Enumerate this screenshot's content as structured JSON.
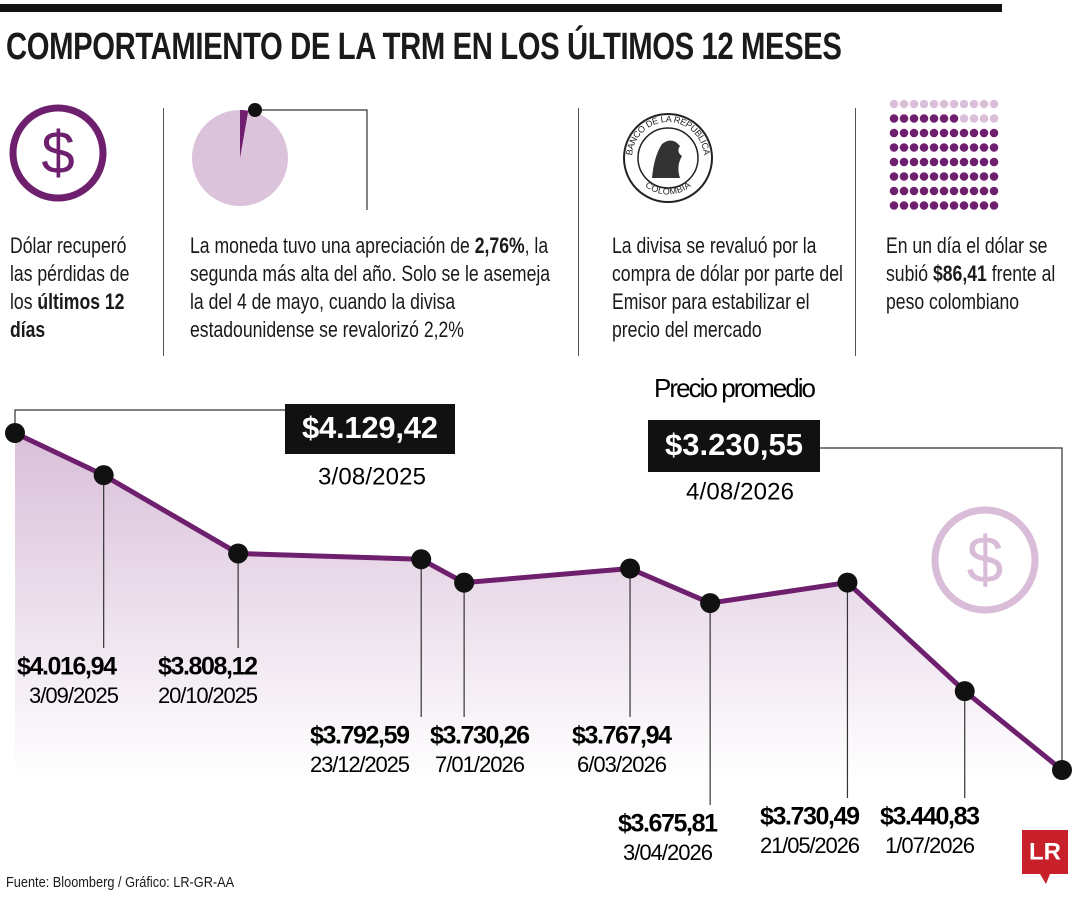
{
  "title": "COMPORTAMIENTO DE LA TRM EN LOS ÚLTIMOS 12 MESES",
  "panels": [
    {
      "text": [
        {
          "text": "Dólar recuperó las pérdidas de los ",
          "bold": false
        },
        {
          "text": "últimos 12 días",
          "bold": true
        }
      ]
    },
    {
      "pie_percent": 2.76,
      "text": [
        {
          "text": "La moneda tuvo una apreciación de ",
          "bold": false
        },
        {
          "text": "2,76%",
          "bold": true
        },
        {
          "text": ", la segunda más alta del año. Solo se le asemeja la del 4 de mayo, cuando la divisa estadounidense se revalorizó 2,2%",
          "bold": false
        }
      ]
    },
    {
      "seal_top": "BANCO DE LA REPÚBLICA",
      "seal_bottom": "COLOMBIA",
      "text": [
        {
          "text": "La divisa se revaluó por la compra de dólar por parte del Emisor para estabilizar el precio del mercado",
          "bold": false
        }
      ]
    },
    {
      "text": [
        {
          "text": "En un día el dólar se subió ",
          "bold": false
        },
        {
          "text": "$86,41",
          "bold": true
        },
        {
          "text": " frente al peso colombiano",
          "bold": false
        }
      ]
    }
  ],
  "chart_data": {
    "type": "line",
    "color": "#6e1f6e",
    "annotation": "Precio promedio",
    "x": [
      "3/08/2025",
      "3/09/2025",
      "20/10/2025",
      "23/12/2025",
      "7/01/2026",
      "6/03/2026",
      "3/04/2026",
      "21/05/2026",
      "1/07/2026",
      "4/08/2026"
    ],
    "values": [
      4129.42,
      4016.94,
      3808.12,
      3792.59,
      3730.26,
      3767.94,
      3675.81,
      3730.49,
      3440.83,
      3230.55
    ],
    "value_labels": [
      "$4.129,42",
      "$4.016,94",
      "$3.808,12",
      "$3.792,59",
      "$3.730,26",
      "$3.767,94",
      "$3.675,81",
      "$3.730,49",
      "$3.440,83",
      "$3.230,55"
    ]
  },
  "source": "Fuente: Bloomberg / Gráfico: LR-GR-AA",
  "logo": "LR"
}
